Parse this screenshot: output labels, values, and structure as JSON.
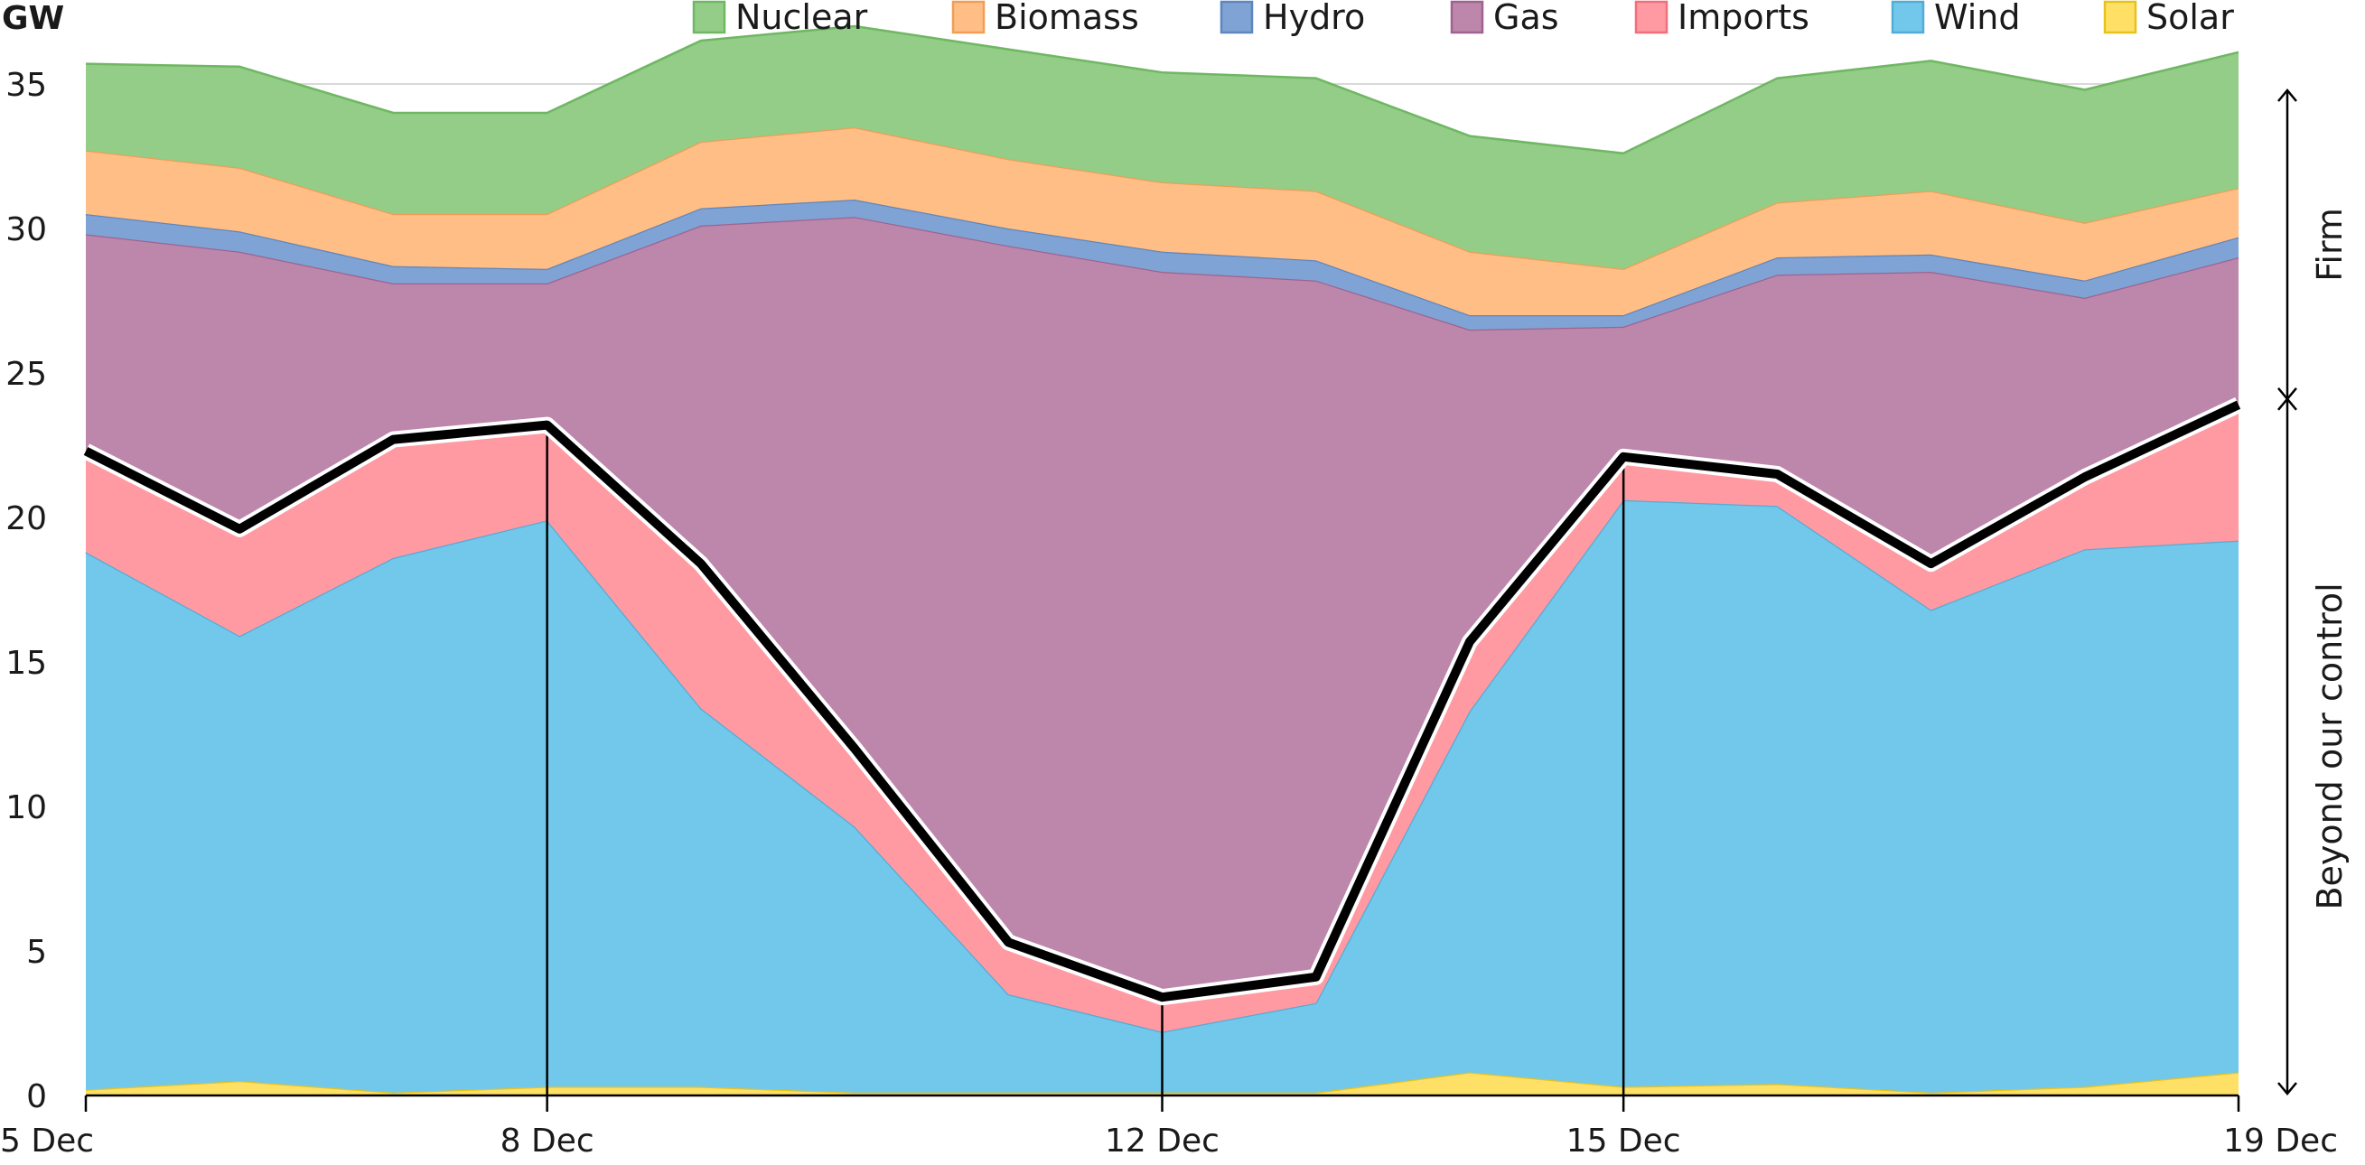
{
  "chart_data": {
    "type": "area",
    "stacked": true,
    "ylabel": "GW",
    "ylim": [
      0,
      36.5
    ],
    "yticks": [
      0,
      5,
      10,
      15,
      20,
      25,
      30,
      35
    ],
    "x": [
      5,
      6,
      7,
      8,
      9,
      10,
      11,
      12,
      13,
      14,
      15,
      16,
      17,
      18,
      19
    ],
    "xticks": [
      {
        "x": 5,
        "label": "5 Dec"
      },
      {
        "x": 8,
        "label": "8 Dec"
      },
      {
        "x": 12,
        "label": "12 Dec"
      },
      {
        "x": 15,
        "label": "15 Dec"
      },
      {
        "x": 19,
        "label": "19 Dec"
      }
    ],
    "marker_lines_x": [
      8,
      12,
      15
    ],
    "grid": true,
    "legend_position": "top",
    "series": [
      {
        "name": "Solar",
        "color": "#ffe066",
        "edge": "#e8c21c",
        "values": [
          0.2,
          0.5,
          0.1,
          0.3,
          0.3,
          0.1,
          0.1,
          0.1,
          0.1,
          0.8,
          0.3,
          0.4,
          0.1,
          0.3,
          0.8
        ]
      },
      {
        "name": "Wind",
        "color": "#72c8eb",
        "edge": "#52acd6",
        "values": [
          18.6,
          15.4,
          18.5,
          19.6,
          13.1,
          9.2,
          3.4,
          2.1,
          3.1,
          12.5,
          20.3,
          20.0,
          16.7,
          18.6,
          18.4
        ]
      },
      {
        "name": "Imports",
        "color": "#ff9aa2",
        "edge": "#f06f7b",
        "values": [
          3.5,
          3.7,
          4.1,
          3.3,
          5.0,
          2.7,
          1.8,
          1.2,
          0.9,
          2.4,
          1.5,
          1.1,
          1.6,
          2.5,
          4.7
        ]
      },
      {
        "name": "Gas",
        "color": "#bd87ab",
        "edge": "#9e6390",
        "values": [
          7.5,
          9.6,
          5.4,
          4.9,
          11.7,
          18.4,
          24.1,
          25.1,
          24.1,
          10.8,
          4.5,
          6.9,
          10.1,
          6.2,
          5.1
        ]
      },
      {
        "name": "Hydro",
        "color": "#7fa3d4",
        "edge": "#5f86bd",
        "values": [
          0.7,
          0.7,
          0.6,
          0.5,
          0.6,
          0.6,
          0.6,
          0.7,
          0.7,
          0.5,
          0.4,
          0.6,
          0.6,
          0.6,
          0.7
        ]
      },
      {
        "name": "Biomass",
        "color": "#ffbe85",
        "edge": "#f09e56",
        "values": [
          2.2,
          2.2,
          1.8,
          1.9,
          2.3,
          2.5,
          2.4,
          2.4,
          2.4,
          2.2,
          1.6,
          1.9,
          2.2,
          2.0,
          1.7
        ]
      },
      {
        "name": "Nuclear",
        "color": "#93cd87",
        "edge": "#6fb763",
        "values": [
          3.0,
          3.5,
          3.5,
          3.5,
          3.5,
          3.5,
          3.8,
          3.8,
          3.9,
          4.0,
          4.0,
          4.3,
          4.5,
          4.6,
          4.7
        ]
      }
    ],
    "boundary_series": [
      "Solar",
      "Wind",
      "Imports"
    ],
    "legend_order": [
      "Nuclear",
      "Biomass",
      "Hydro",
      "Gas",
      "Imports",
      "Wind",
      "Solar"
    ],
    "bracket_upper_label": "Firm",
    "bracket_lower_label": "Beyond our control"
  }
}
